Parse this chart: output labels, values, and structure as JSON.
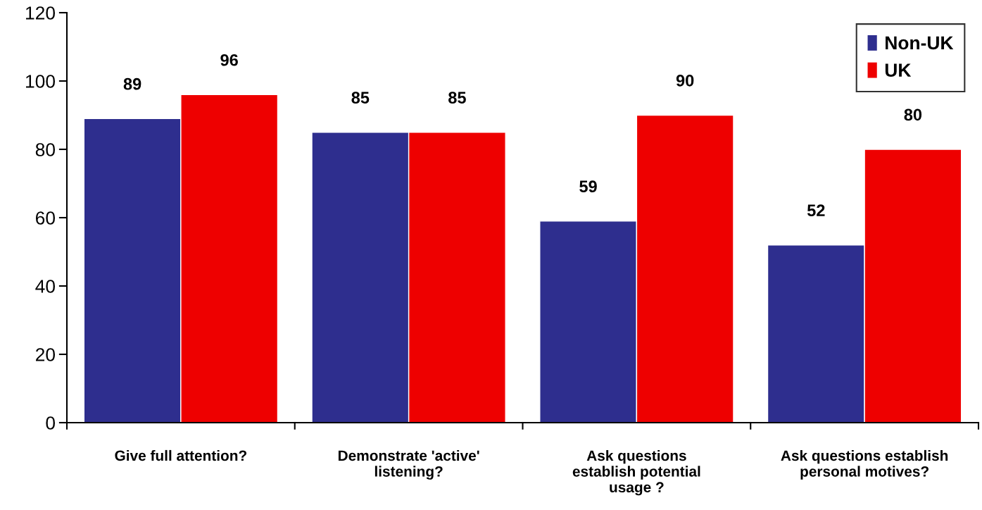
{
  "chart_data": {
    "type": "bar",
    "categories": [
      "Give full attention?",
      "Demonstrate 'active'\nlistening?",
      "Ask questions\nestablish potential\nusage ?",
      "Ask questions establish\npersonal motives?"
    ],
    "series": [
      {
        "name": "Non-UK",
        "color": "#2e2e8e",
        "values": [
          89,
          85,
          59,
          52
        ]
      },
      {
        "name": "UK",
        "color": "#ee0000",
        "values": [
          96,
          85,
          90,
          80
        ]
      }
    ],
    "ylim": [
      0,
      120
    ],
    "yticks": [
      0,
      20,
      40,
      60,
      80,
      100,
      120
    ],
    "grid": false,
    "legend": "top right",
    "data_labels": true
  }
}
